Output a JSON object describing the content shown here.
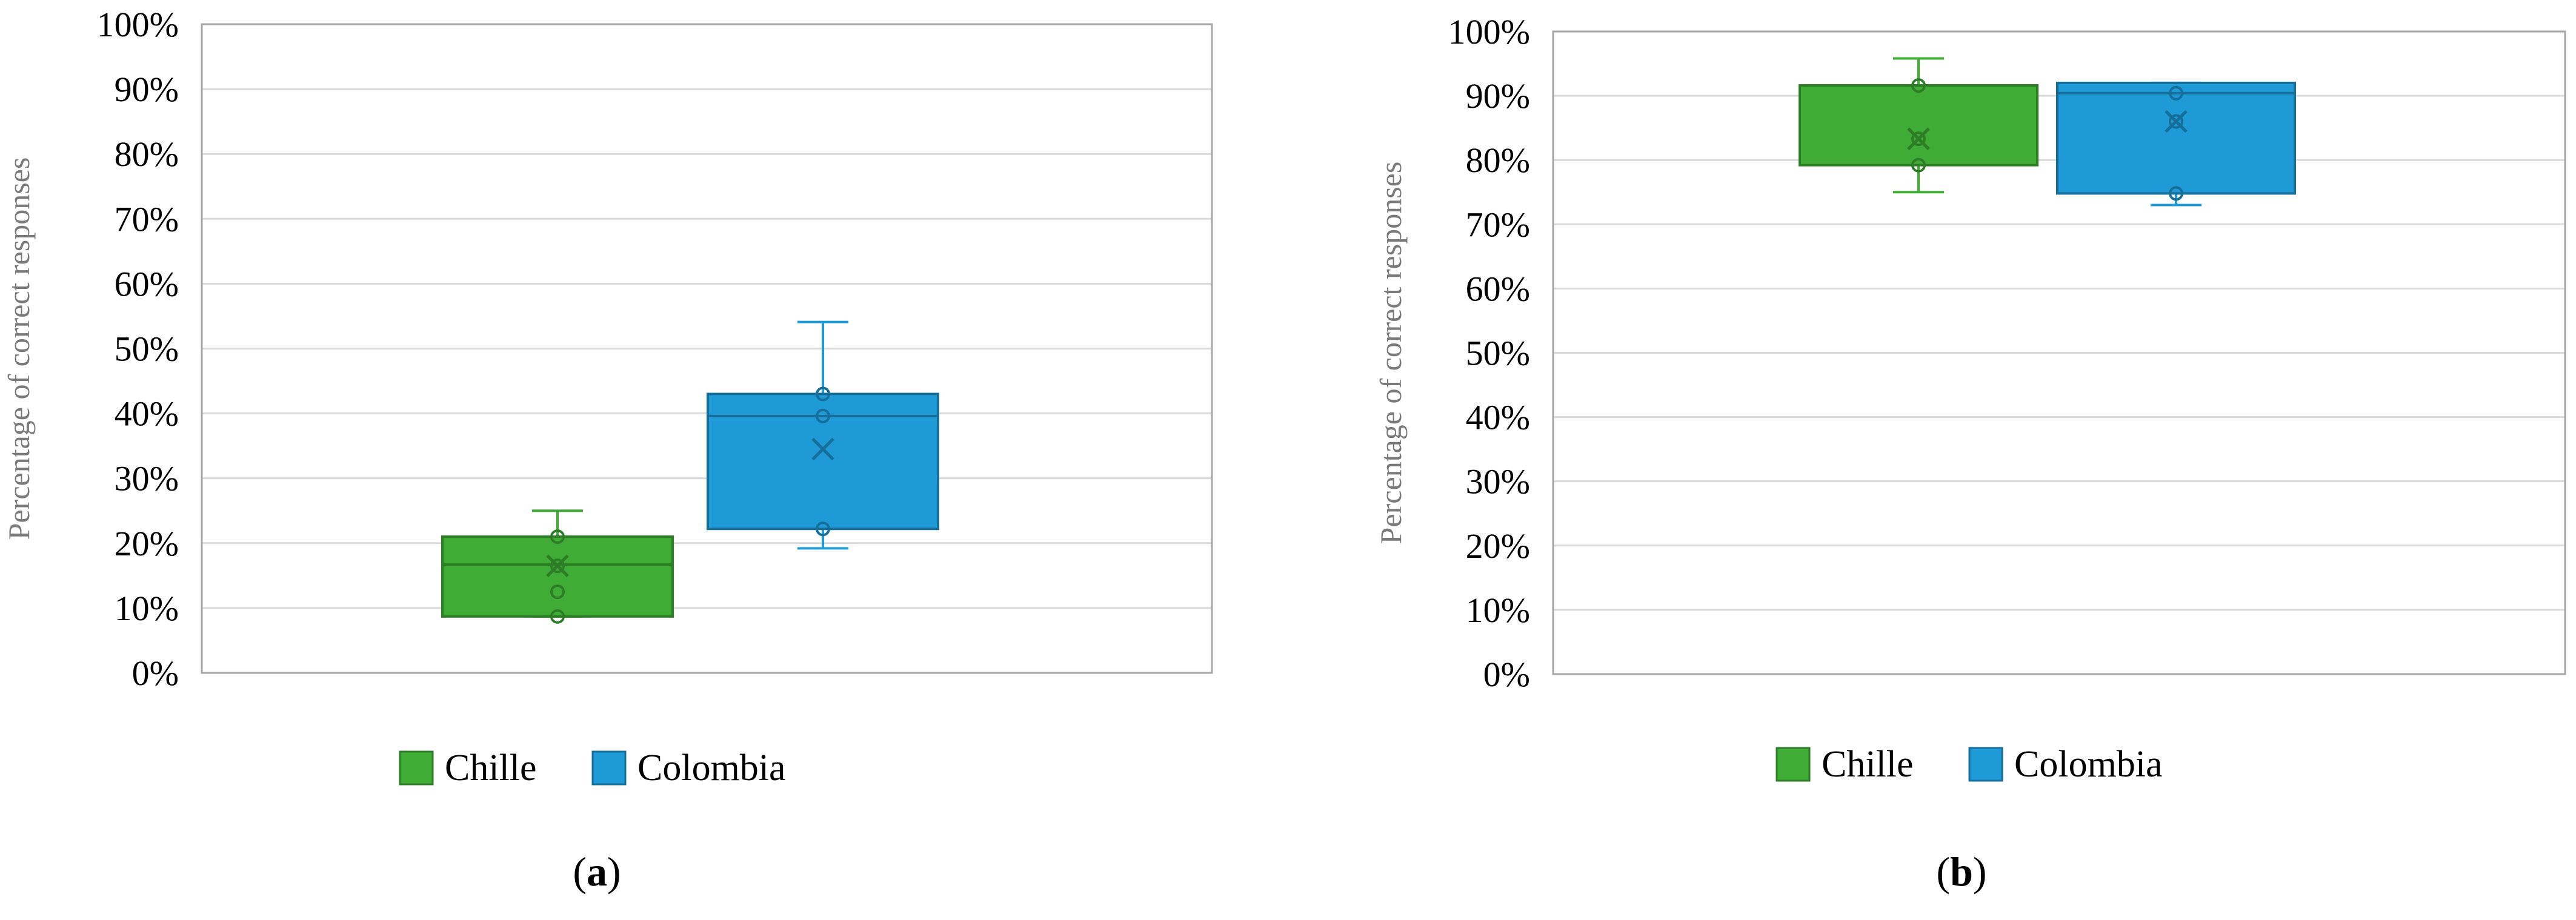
{
  "chart_data": [
    {
      "type": "box",
      "panel_label": "a",
      "ylabel": "Percentage of correct responses",
      "yticks": [
        "0%",
        "10%",
        "20%",
        "30%",
        "40%",
        "50%",
        "60%",
        "70%",
        "80%",
        "90%",
        "100%"
      ],
      "ylim": [
        0,
        100
      ],
      "grid": true,
      "legend_position": "bottom",
      "series": [
        {
          "name": "Chille",
          "color": "#3fac35",
          "min": 8.7,
          "q1": 8.7,
          "median": 16.7,
          "q3": 21.0,
          "max": 25.0,
          "mean": 16.5,
          "points": [
            8.7,
            12.5,
            16.5,
            21.0
          ]
        },
        {
          "name": "Colombia",
          "color": "#1e9ad6",
          "min": 19.2,
          "q1": 22.2,
          "median": 39.6,
          "q3": 43.0,
          "max": 54.1,
          "mean": 34.5,
          "points": [
            22.2,
            39.6,
            43.0
          ]
        }
      ]
    },
    {
      "type": "box",
      "panel_label": "b",
      "ylabel": "Percentage of correct responses",
      "yticks": [
        "0%",
        "10%",
        "20%",
        "30%",
        "40%",
        "50%",
        "60%",
        "70%",
        "80%",
        "90%",
        "100%"
      ],
      "ylim": [
        0,
        100
      ],
      "grid": true,
      "legend_position": "bottom",
      "series": [
        {
          "name": "Chille",
          "color": "#3fac35",
          "min": 75.0,
          "q1": 79.2,
          "median": 91.6,
          "q3": 91.6,
          "max": 95.8,
          "mean": 83.3,
          "points": [
            79.2,
            83.3,
            91.6
          ]
        },
        {
          "name": "Colombia",
          "color": "#1e9ad6",
          "min": 73.0,
          "q1": 74.8,
          "median": 90.4,
          "q3": 92.0,
          "max": 92.0,
          "mean": 86.0,
          "points": [
            74.8,
            86.0,
            90.4
          ]
        }
      ]
    }
  ]
}
